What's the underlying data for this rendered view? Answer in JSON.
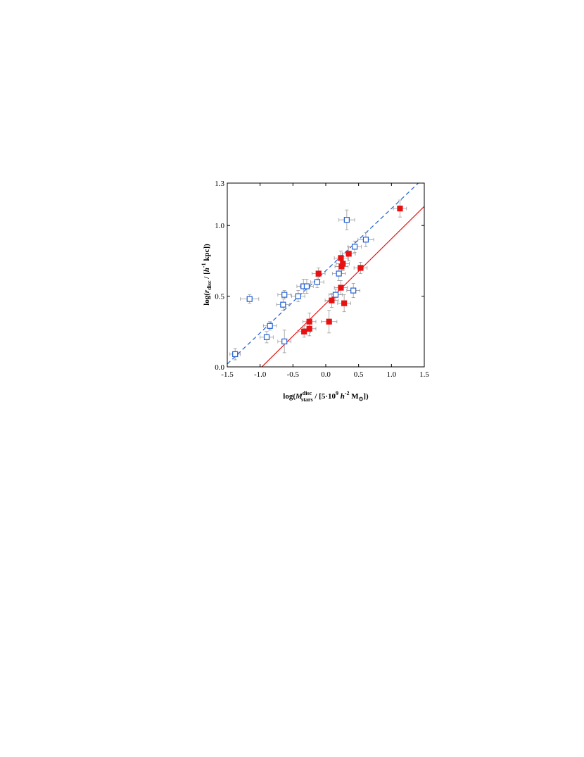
{
  "chart_data": {
    "type": "scatter",
    "x_label": [
      "log(",
      "M",
      "disc",
      "stars",
      " / [5·10",
      "9",
      " h",
      "-2",
      " M",
      "⊙",
      "])"
    ],
    "y_label": [
      "log(",
      "r",
      "disc",
      " / [",
      "h",
      "-1",
      " kpc])"
    ],
    "xlim": [
      -1.5,
      1.5
    ],
    "ylim": [
      0,
      1.3
    ],
    "xticks": [
      -1.5,
      {
        "value": -1,
        "label": "-1.0"
      },
      -0.5,
      {
        "value": 0,
        "label": "0.0"
      },
      0.5,
      {
        "value": 1,
        "label": "1.0"
      },
      1.5
    ],
    "yticks": [
      {
        "value": 0,
        "label": "0.0"
      },
      0.5,
      {
        "value": 1,
        "label": "1.0"
      },
      1.3
    ],
    "error_color": "#999999",
    "series": [
      {
        "color": "#1f5fd6",
        "marker": "open",
        "fit": {
          "slope": 0.44,
          "intercept": 0.68,
          "dash": "dashed"
        },
        "x": [
          -1.38,
          -1.16,
          -0.9,
          -0.85,
          -0.63,
          -0.65,
          -0.63,
          -0.42,
          -0.34,
          -0.29,
          -0.13,
          0.15,
          0.2,
          0.32,
          0.42,
          0.44,
          0.61
        ],
        "values": [
          0.09,
          0.48,
          0.21,
          0.29,
          0.18,
          0.44,
          0.51,
          0.5,
          0.57,
          0.57,
          0.6,
          0.51,
          0.66,
          1.04,
          0.54,
          0.85,
          0.9
        ],
        "xerr": [
          0.08,
          0.14,
          0.1,
          0.1,
          0.1,
          0.1,
          0.1,
          0.1,
          0.1,
          0.1,
          0.1,
          0.1,
          0.1,
          0.12,
          0.1,
          0.1,
          0.12
        ],
        "yerr": [
          0.04,
          0.03,
          0.04,
          0.03,
          0.08,
          0.04,
          0.03,
          0.04,
          0.05,
          0.05,
          0.04,
          0.04,
          0.05,
          0.07,
          0.05,
          0.04,
          0.05
        ]
      },
      {
        "color": "#e81010",
        "marker": "filled",
        "fit": {
          "slope": 0.459,
          "intercept": 0.447,
          "dash": "solid"
        },
        "x": [
          1.13,
          0.35,
          0.23,
          0.26,
          0.24,
          0.53,
          -0.11,
          0.23,
          0.09,
          0.28,
          -0.25,
          0.05,
          -0.33,
          -0.25
        ],
        "values": [
          1.12,
          0.8,
          0.77,
          0.73,
          0.71,
          0.7,
          0.66,
          0.56,
          0.47,
          0.45,
          0.32,
          0.32,
          0.25,
          0.27
        ],
        "xerr": [
          0.1,
          0.1,
          0.1,
          0.1,
          0.1,
          0.1,
          0.1,
          0.1,
          0.1,
          0.1,
          0.1,
          0.12,
          0.1,
          0.1
        ],
        "yerr": [
          0.06,
          0.05,
          0.05,
          0.05,
          0.05,
          0.04,
          0.04,
          0.05,
          0.05,
          0.06,
          0.06,
          0.08,
          0.04,
          0.05
        ]
      }
    ]
  }
}
